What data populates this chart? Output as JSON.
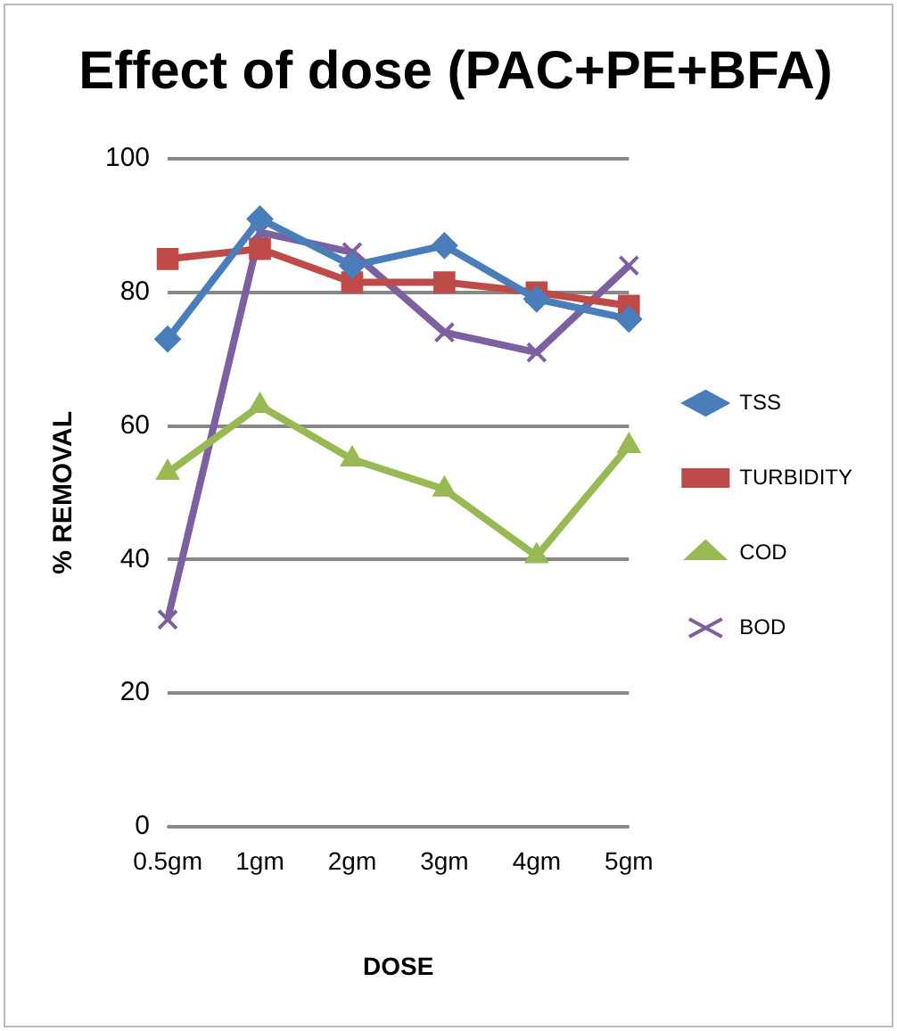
{
  "chart_data": {
    "type": "line",
    "title": "Effect of dose (PAC+PE+BFA)",
    "xlabel": "DOSE",
    "ylabel": "% REMOVAL",
    "categories": [
      "0.5gm",
      "1gm",
      "2gm",
      "3gm",
      "4gm",
      "5gm"
    ],
    "series": [
      {
        "name": "TSS",
        "color": "#4a7ebb",
        "marker": "diamond",
        "values": [
          73,
          91,
          84,
          87,
          79,
          76
        ]
      },
      {
        "name": "TURBIDITY",
        "color": "#be4b48",
        "marker": "square",
        "values": [
          85,
          86.5,
          81.5,
          81.5,
          80,
          78
        ]
      },
      {
        "name": "COD",
        "color": "#98b954",
        "marker": "triangle",
        "values": [
          53,
          63,
          55,
          50.5,
          40.5,
          57
        ]
      },
      {
        "name": "BOD",
        "color": "#7d60a0",
        "marker": "cross",
        "values": [
          31,
          89,
          86,
          74,
          71,
          84
        ]
      }
    ],
    "ylim": [
      0,
      100
    ],
    "yticks": [
      0,
      20,
      40,
      60,
      80,
      100
    ],
    "grid": "y",
    "legend": "right",
    "line_style": "solid"
  }
}
